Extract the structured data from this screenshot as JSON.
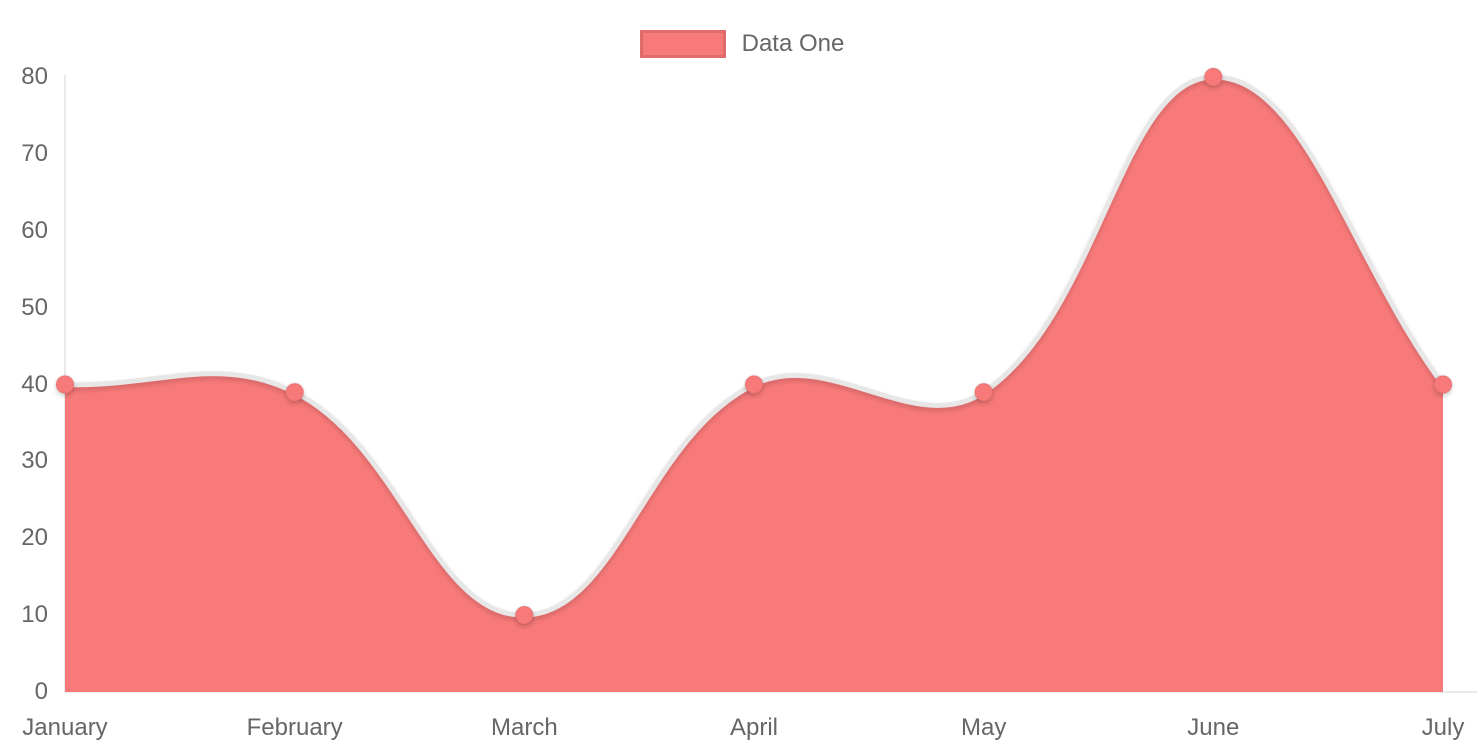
{
  "chart_data": {
    "type": "area",
    "title": "",
    "xlabel": "",
    "ylabel": "",
    "categories": [
      "January",
      "February",
      "March",
      "April",
      "May",
      "June",
      "July"
    ],
    "series": [
      {
        "name": "Data One",
        "values": [
          40,
          39,
          10,
          40,
          39,
          80,
          40
        ]
      }
    ],
    "ylim": [
      0,
      80
    ],
    "yticks": [
      0,
      10,
      20,
      30,
      40,
      50,
      60,
      70,
      80
    ],
    "grid": false,
    "legend_position": "top-center",
    "smoothing_tension": 0.4,
    "colors": {
      "fill": "#f87979",
      "line": "#e7e7e7",
      "axis": "#e9e9e9",
      "text": "#666666",
      "legend_border": "rgba(0,0,0,0.1)"
    }
  }
}
